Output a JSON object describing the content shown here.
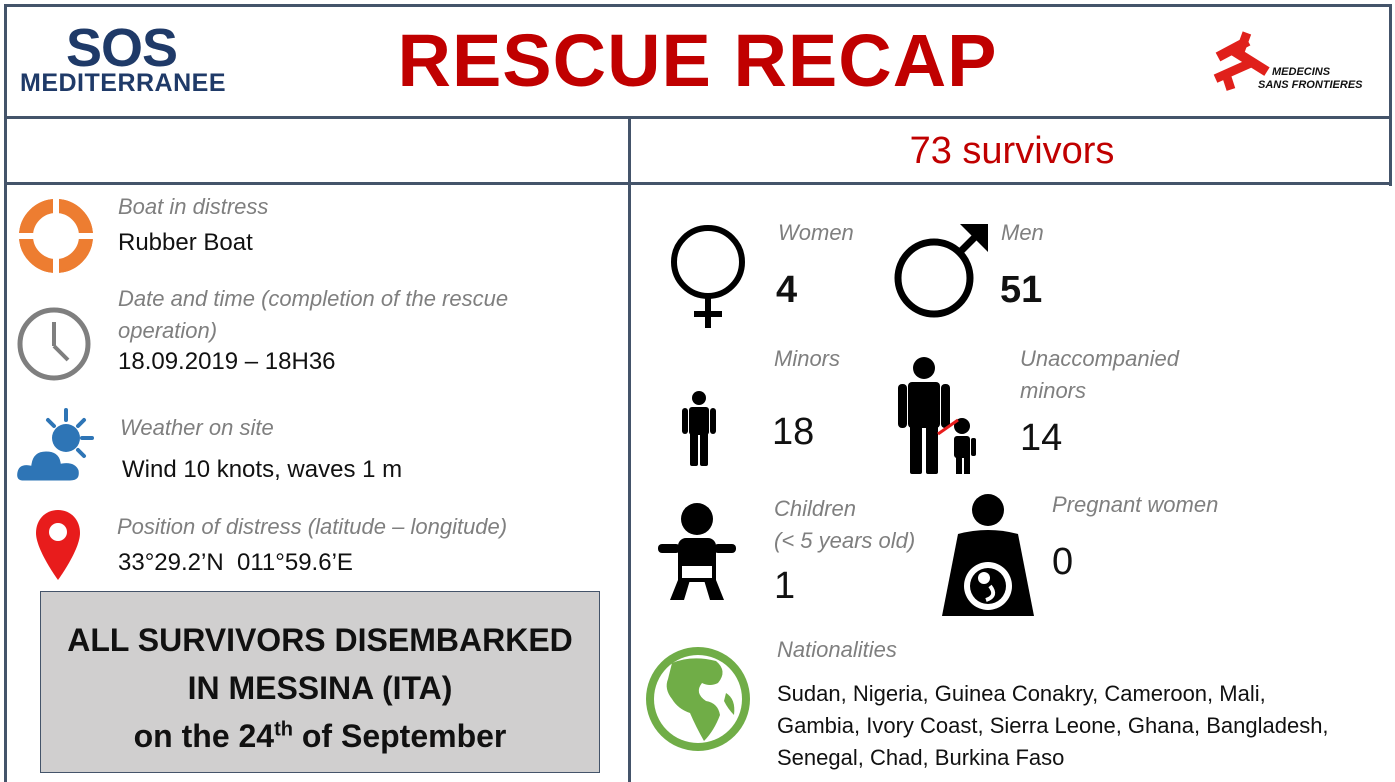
{
  "header": {
    "title": "RESCUE RECAP",
    "logo_left_line1": "SOS",
    "logo_left_line2": "MEDITERRANEE",
    "logo_right_line1": "MEDECINS",
    "logo_right_line2": "SANS FRONTIERES"
  },
  "summary": {
    "survivors_text": "73 survivors"
  },
  "left_panel": {
    "boat_label": "Boat in distress",
    "boat_value": "Rubber Boat",
    "datetime_label_line1": "Date and time (completion of the rescue",
    "datetime_label_line2": "operation)",
    "datetime_value": "18.09.2019 – 18H36",
    "weather_label": "Weather on site",
    "weather_value": "Wind 10 knots, waves 1 m",
    "position_label": "Position of distress (latitude – longitude)",
    "position_value": "33°29.2’N  011°59.6’E"
  },
  "disembark": {
    "line1": "ALL SURVIVORS DISEMBARKED",
    "line2": "IN MESSINA (ITA)",
    "line3_prefix": "on the 24",
    "line3_sup": "th",
    "line3_suffix": " of September"
  },
  "stats": {
    "women_label": "Women",
    "women_value": "4",
    "men_label": "Men",
    "men_value": "51",
    "minors_label": "Minors",
    "minors_value": "18",
    "unaccompanied_label_line1": "Unaccompanied",
    "unaccompanied_label_line2": "minors",
    "unaccompanied_value": "14",
    "children_label_line1": "Children",
    "children_label_line2": "(< 5 years old)",
    "children_value": "1",
    "pregnant_label": "Pregnant women",
    "pregnant_value": "0"
  },
  "nationalities": {
    "label": "Nationalities",
    "line1": "Sudan, Nigeria, Guinea Conakry, Cameroon, Mali,",
    "line2": "Gambia, Ivory Coast, Sierra Leone, Ghana, Bangladesh,",
    "line3": "Senegal, Chad, Burkina Faso"
  },
  "icons": {
    "lifebuoy": "lifebuoy-icon",
    "clock": "clock-icon",
    "weather": "weather-icon",
    "location": "location-pin-icon",
    "female": "female-symbol-icon",
    "male": "male-symbol-icon",
    "child": "child-icon",
    "adult_child": "adult-with-child-icon",
    "baby": "baby-icon",
    "pregnant": "pregnant-woman-icon",
    "globe": "globe-icon"
  },
  "colors": {
    "title_red": "#c00000",
    "border": "#44546a",
    "label_grey": "#7f7f7f",
    "sos_blue": "#1f3a68",
    "lifebuoy_orange": "#ed7d31",
    "weather_blue": "#2e75b6",
    "weather_sun": "#2e75b6",
    "pin_red": "#e81c1c",
    "globe_green": "#70ad47",
    "box_grey": "#d0cfcf"
  }
}
